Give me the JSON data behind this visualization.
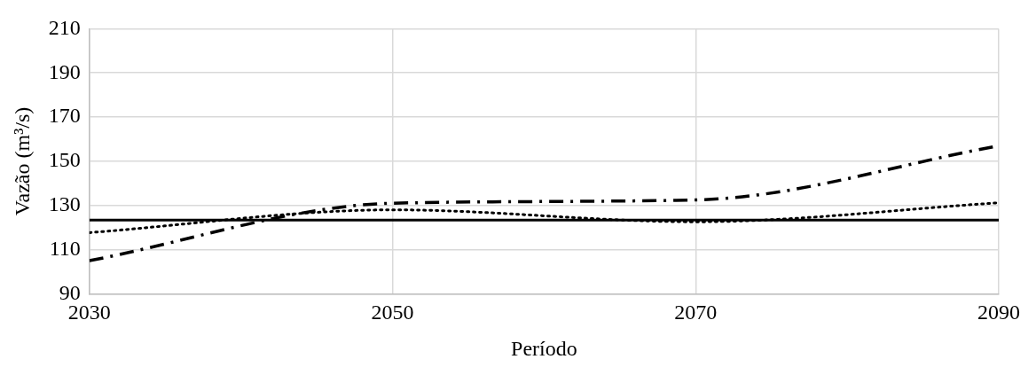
{
  "chart_data": {
    "type": "line",
    "xlabel": "Período",
    "ylabel": "Vazão (m³/s)",
    "x": [
      2030,
      2050,
      2070,
      2090
    ],
    "xlim": [
      2030,
      2090
    ],
    "xticks": [
      2030,
      2050,
      2070,
      2090
    ],
    "ylim": [
      90,
      210
    ],
    "yticks": [
      90,
      110,
      130,
      150,
      170,
      190,
      210
    ],
    "grid": true,
    "marker": "none",
    "series": [
      {
        "color": "#000000",
        "line_style": "solid",
        "values": [
          123.4,
          123.4,
          123.4,
          123.4
        ]
      },
      {
        "color": "#000000",
        "line_style": "dotted",
        "values": [
          117.7,
          128,
          122.6,
          131.2
        ]
      },
      {
        "color": "#000000",
        "line_style": "dashdot",
        "values": [
          105,
          131,
          132.5,
          157
        ]
      }
    ]
  }
}
